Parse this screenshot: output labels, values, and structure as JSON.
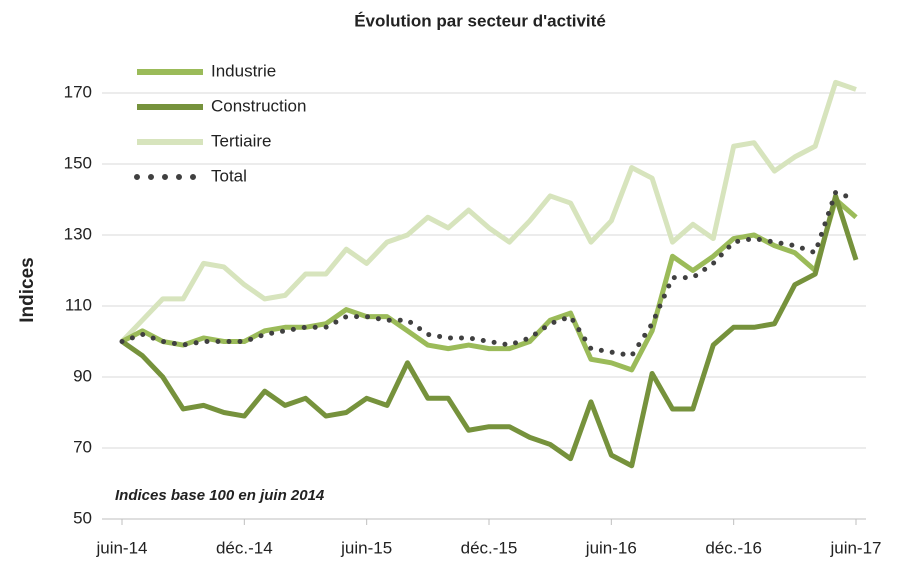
{
  "chart_data": {
    "type": "line",
    "title": "Évolution par secteur d'activité",
    "y_label": "Indices",
    "annotation": "Indices base 100 en juin 2014",
    "categories": [
      "juin-14",
      null,
      null,
      null,
      null,
      null,
      "déc.-14",
      null,
      null,
      null,
      null,
      null,
      "juin-15",
      null,
      null,
      null,
      null,
      null,
      "déc.-15",
      null,
      null,
      null,
      null,
      null,
      "juin-16",
      null,
      null,
      null,
      null,
      null,
      "déc.-16",
      null,
      null,
      null,
      null,
      null,
      "juin-17"
    ],
    "series": [
      {
        "name": "Industrie",
        "color": "#9bbb59",
        "style": "solid",
        "values": [
          100,
          103,
          100,
          99,
          101,
          100,
          100,
          103,
          104,
          104,
          105,
          109,
          107,
          107,
          103,
          99,
          98,
          99,
          98,
          98,
          100,
          106,
          108,
          95,
          94,
          92,
          103,
          124,
          120,
          124,
          129,
          130,
          127,
          125,
          120,
          140,
          135
        ]
      },
      {
        "name": "Construction",
        "color": "#76923c",
        "style": "solid",
        "values": [
          100,
          96,
          90,
          81,
          82,
          80,
          79,
          86,
          82,
          84,
          79,
          80,
          84,
          82,
          94,
          84,
          84,
          75,
          76,
          76,
          73,
          71,
          67,
          83,
          68,
          65,
          91,
          81,
          81,
          99,
          104,
          104,
          105,
          116,
          119,
          141,
          123
        ]
      },
      {
        "name": "Tertiaire",
        "color": "#d7e4bd",
        "style": "solid",
        "values": [
          100,
          106,
          112,
          112,
          122,
          121,
          116,
          112,
          113,
          119,
          119,
          126,
          122,
          128,
          130,
          135,
          132,
          137,
          132,
          128,
          134,
          141,
          139,
          128,
          134,
          149,
          146,
          128,
          133,
          129,
          155,
          156,
          148,
          152,
          155,
          173,
          171
        ]
      },
      {
        "name": "Total",
        "color": "#404040",
        "style": "dotted",
        "values": [
          100,
          102,
          100,
          99,
          100,
          100,
          100,
          102,
          103,
          104,
          104,
          107,
          107,
          106,
          106,
          102,
          101,
          101,
          100,
          99,
          101,
          105,
          107,
          98,
          97,
          96,
          105,
          118,
          118,
          122,
          128,
          129,
          128,
          127,
          125,
          142,
          140
        ]
      }
    ],
    "ylim": [
      50,
      170
    ],
    "yticks": [
      50,
      70,
      90,
      110,
      130,
      150,
      170
    ],
    "grid": true,
    "legend": "top-left"
  }
}
